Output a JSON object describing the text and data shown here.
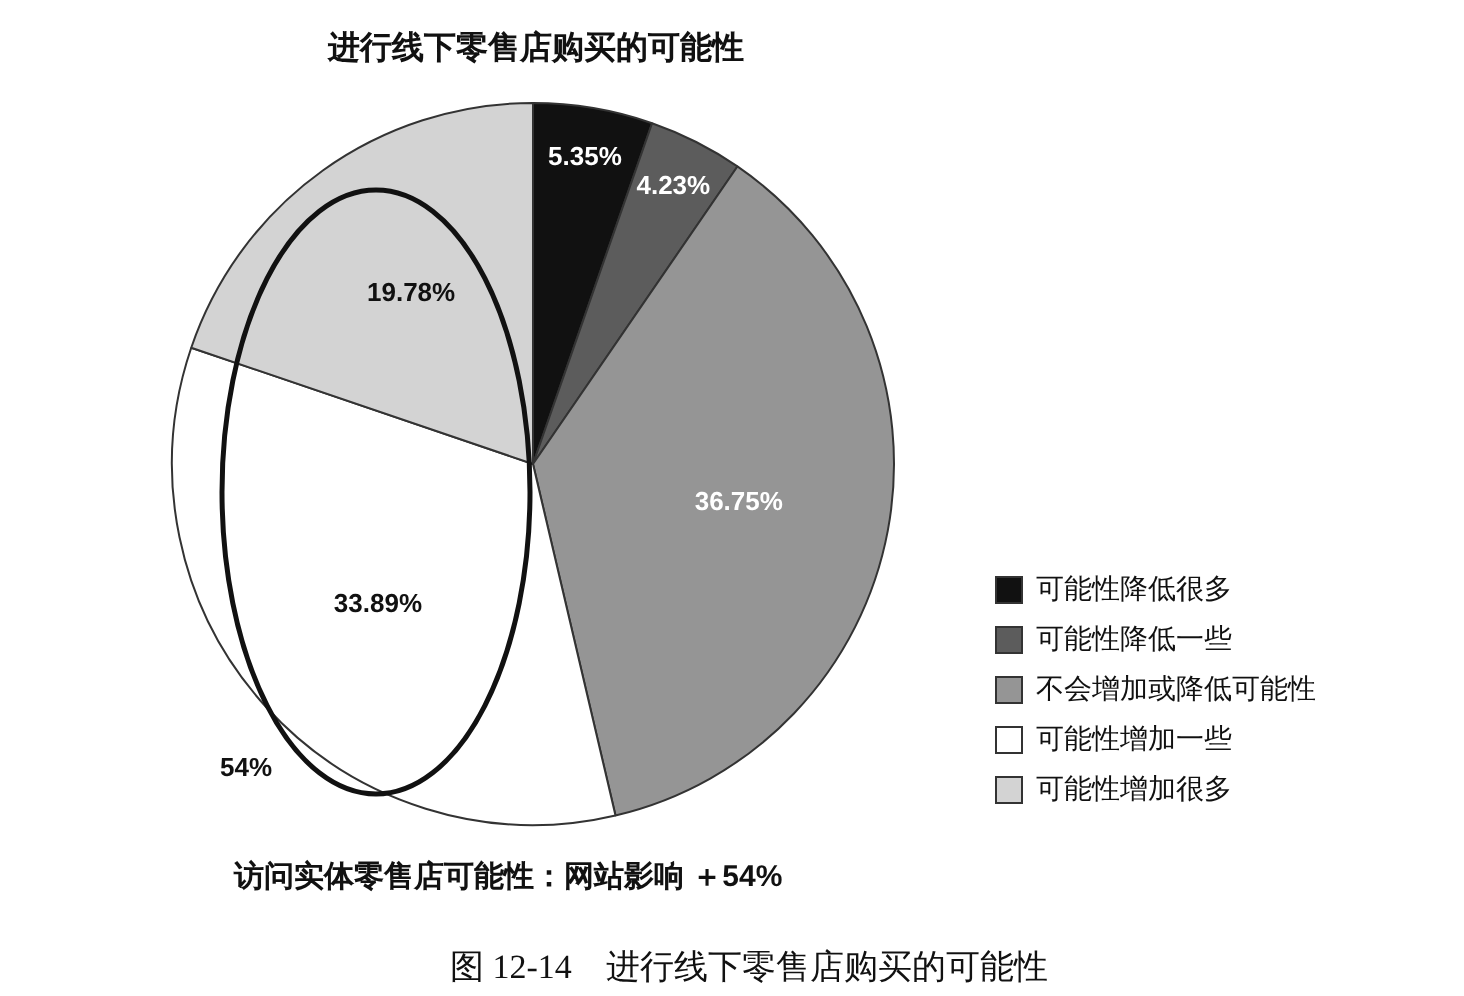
{
  "chart_data": {
    "type": "pie",
    "title": "进行线下零售店购买的可能性",
    "categories": [
      "可能性降低很多",
      "可能性降低一些",
      "不会增加或降低可能性",
      "可能性增加一些",
      "可能性增加很多"
    ],
    "values": [
      5.35,
      4.23,
      36.75,
      33.89,
      19.78
    ],
    "colors": [
      "#111111",
      "#5c5c5c",
      "#959595",
      "#ffffff",
      "#d3d3d3"
    ],
    "value_labels": [
      "5.35%",
      "4.23%",
      "36.75%",
      "33.89%",
      "19.78%"
    ],
    "legend": "right",
    "annotations": [
      "54%",
      "访问实体零售店可能性：网站影响 ＋54%",
      "图 12-14　进行线下零售店购买的可能性"
    ]
  }
}
